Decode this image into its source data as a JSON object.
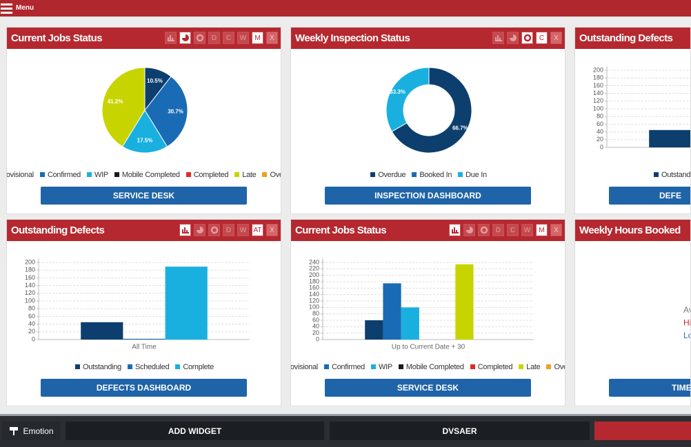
{
  "header": {
    "menu": "Menu"
  },
  "widgets": [
    {
      "title": "Current Jobs Status",
      "icons": [
        "bar",
        "pie",
        "donut"
      ],
      "icon_active": "pie",
      "buttons": [
        {
          "label": "D"
        },
        {
          "label": "C"
        },
        {
          "label": "W"
        },
        {
          "label": "M",
          "active": true
        },
        {
          "label": "X"
        }
      ],
      "chart": {
        "type": "pie",
        "categories": [
          "Provisional",
          "Confirmed",
          "WIP",
          "Mobile Completed",
          "Completed",
          "Late",
          "Overdue"
        ],
        "colors": [
          "#0d3f6e",
          "#1a6bb5",
          "#19b0e0",
          "#1a1a1a",
          "#e02b20",
          "#c8d400",
          "#f0a020"
        ],
        "values": [
          10.5,
          30.7,
          17.5,
          0,
          0,
          41.2,
          0
        ],
        "value_labels": [
          "10.5%",
          "30.7%",
          "17.5%",
          null,
          null,
          "41.2%",
          null
        ]
      },
      "link": "SERVICE DESK"
    },
    {
      "title": "Weekly Inspection Status",
      "icons": [
        "bar",
        "pie",
        "donut"
      ],
      "icon_active": "donut",
      "buttons": [
        {
          "label": "C",
          "active": true
        },
        {
          "label": "X"
        }
      ],
      "chart": {
        "type": "donut",
        "categories": [
          "Overdue",
          "Booked In",
          "Due In"
        ],
        "colors": [
          "#0d3f6e",
          "#1a6bb5",
          "#19b0e0"
        ],
        "values": [
          66.7,
          0,
          33.3
        ],
        "value_labels": [
          "66.7%",
          null,
          "33.3%"
        ]
      },
      "link": "INSPECTION DASHBOARD"
    },
    {
      "title": "Outstanding Defects",
      "chart": {
        "type": "bar",
        "series": [
          {
            "name": "Outstanding",
            "color": "#0d3f6e",
            "values": [
              45
            ]
          }
        ],
        "ylim": [
          0,
          200
        ],
        "yticks": [
          0,
          20,
          40,
          60,
          80,
          100,
          120,
          140,
          160,
          180,
          200
        ],
        "grid": true
      },
      "link": "DEFE"
    },
    {
      "title": "Outstanding Defects",
      "icons": [
        "bar",
        "pie",
        "donut"
      ],
      "icon_active": "bar",
      "buttons": [
        {
          "label": "D"
        },
        {
          "label": "W"
        },
        {
          "label": "AT",
          "active": true
        },
        {
          "label": "X"
        }
      ],
      "chart": {
        "type": "bar",
        "categories": [
          "All Time"
        ],
        "series": [
          {
            "name": "Outstanding",
            "color": "#0d3f6e",
            "values": [
              45
            ]
          },
          {
            "name": "Scheduled",
            "color": "#1a6bb5",
            "values": [
              2
            ]
          },
          {
            "name": "Complete",
            "color": "#19b0e0",
            "values": [
              189
            ]
          }
        ],
        "ylim": [
          0,
          200
        ],
        "yticks": [
          0,
          20,
          40,
          60,
          80,
          100,
          120,
          140,
          160,
          180,
          200
        ],
        "grid": true
      },
      "link": "DEFECTS DASHBOARD"
    },
    {
      "title": "Current Jobs Status",
      "icons": [
        "bar",
        "pie",
        "donut"
      ],
      "icon_active": "bar",
      "buttons": [
        {
          "label": "D"
        },
        {
          "label": "C"
        },
        {
          "label": "W"
        },
        {
          "label": "M",
          "active": true
        },
        {
          "label": "X"
        }
      ],
      "chart": {
        "type": "bar",
        "categories": [
          "Up to Current Date + 30"
        ],
        "series": [
          {
            "name": "Provisional",
            "color": "#0d3f6e",
            "values": [
              60
            ]
          },
          {
            "name": "Confirmed",
            "color": "#1a6bb5",
            "values": [
              175
            ]
          },
          {
            "name": "WIP",
            "color": "#19b0e0",
            "values": [
              100
            ]
          },
          {
            "name": "Mobile Completed",
            "color": "#1a1a1a",
            "values": [
              0
            ]
          },
          {
            "name": "Completed",
            "color": "#e02b20",
            "values": [
              0
            ]
          },
          {
            "name": "Late",
            "color": "#c8d400",
            "values": [
              234
            ]
          },
          {
            "name": "Overdue",
            "color": "#f0a020",
            "values": [
              0
            ]
          }
        ],
        "ylim": [
          0,
          240
        ],
        "yticks": [
          0,
          20,
          40,
          60,
          80,
          100,
          120,
          140,
          160,
          180,
          200,
          220,
          240
        ],
        "grid": true
      },
      "link": "SERVICE DESK"
    },
    {
      "title": "Weekly Hours Booked",
      "chart": {
        "type": "stats",
        "lines": [
          {
            "text": "Av",
            "color": "#777777"
          },
          {
            "text": "Hi",
            "color": "#c0282d"
          },
          {
            "text": "Lo",
            "color": "#2a6ab0"
          }
        ]
      },
      "link": "TIMES"
    }
  ],
  "footer": {
    "theme": "Emotion",
    "add": "ADD WIDGET",
    "user": "DVSAER"
  }
}
